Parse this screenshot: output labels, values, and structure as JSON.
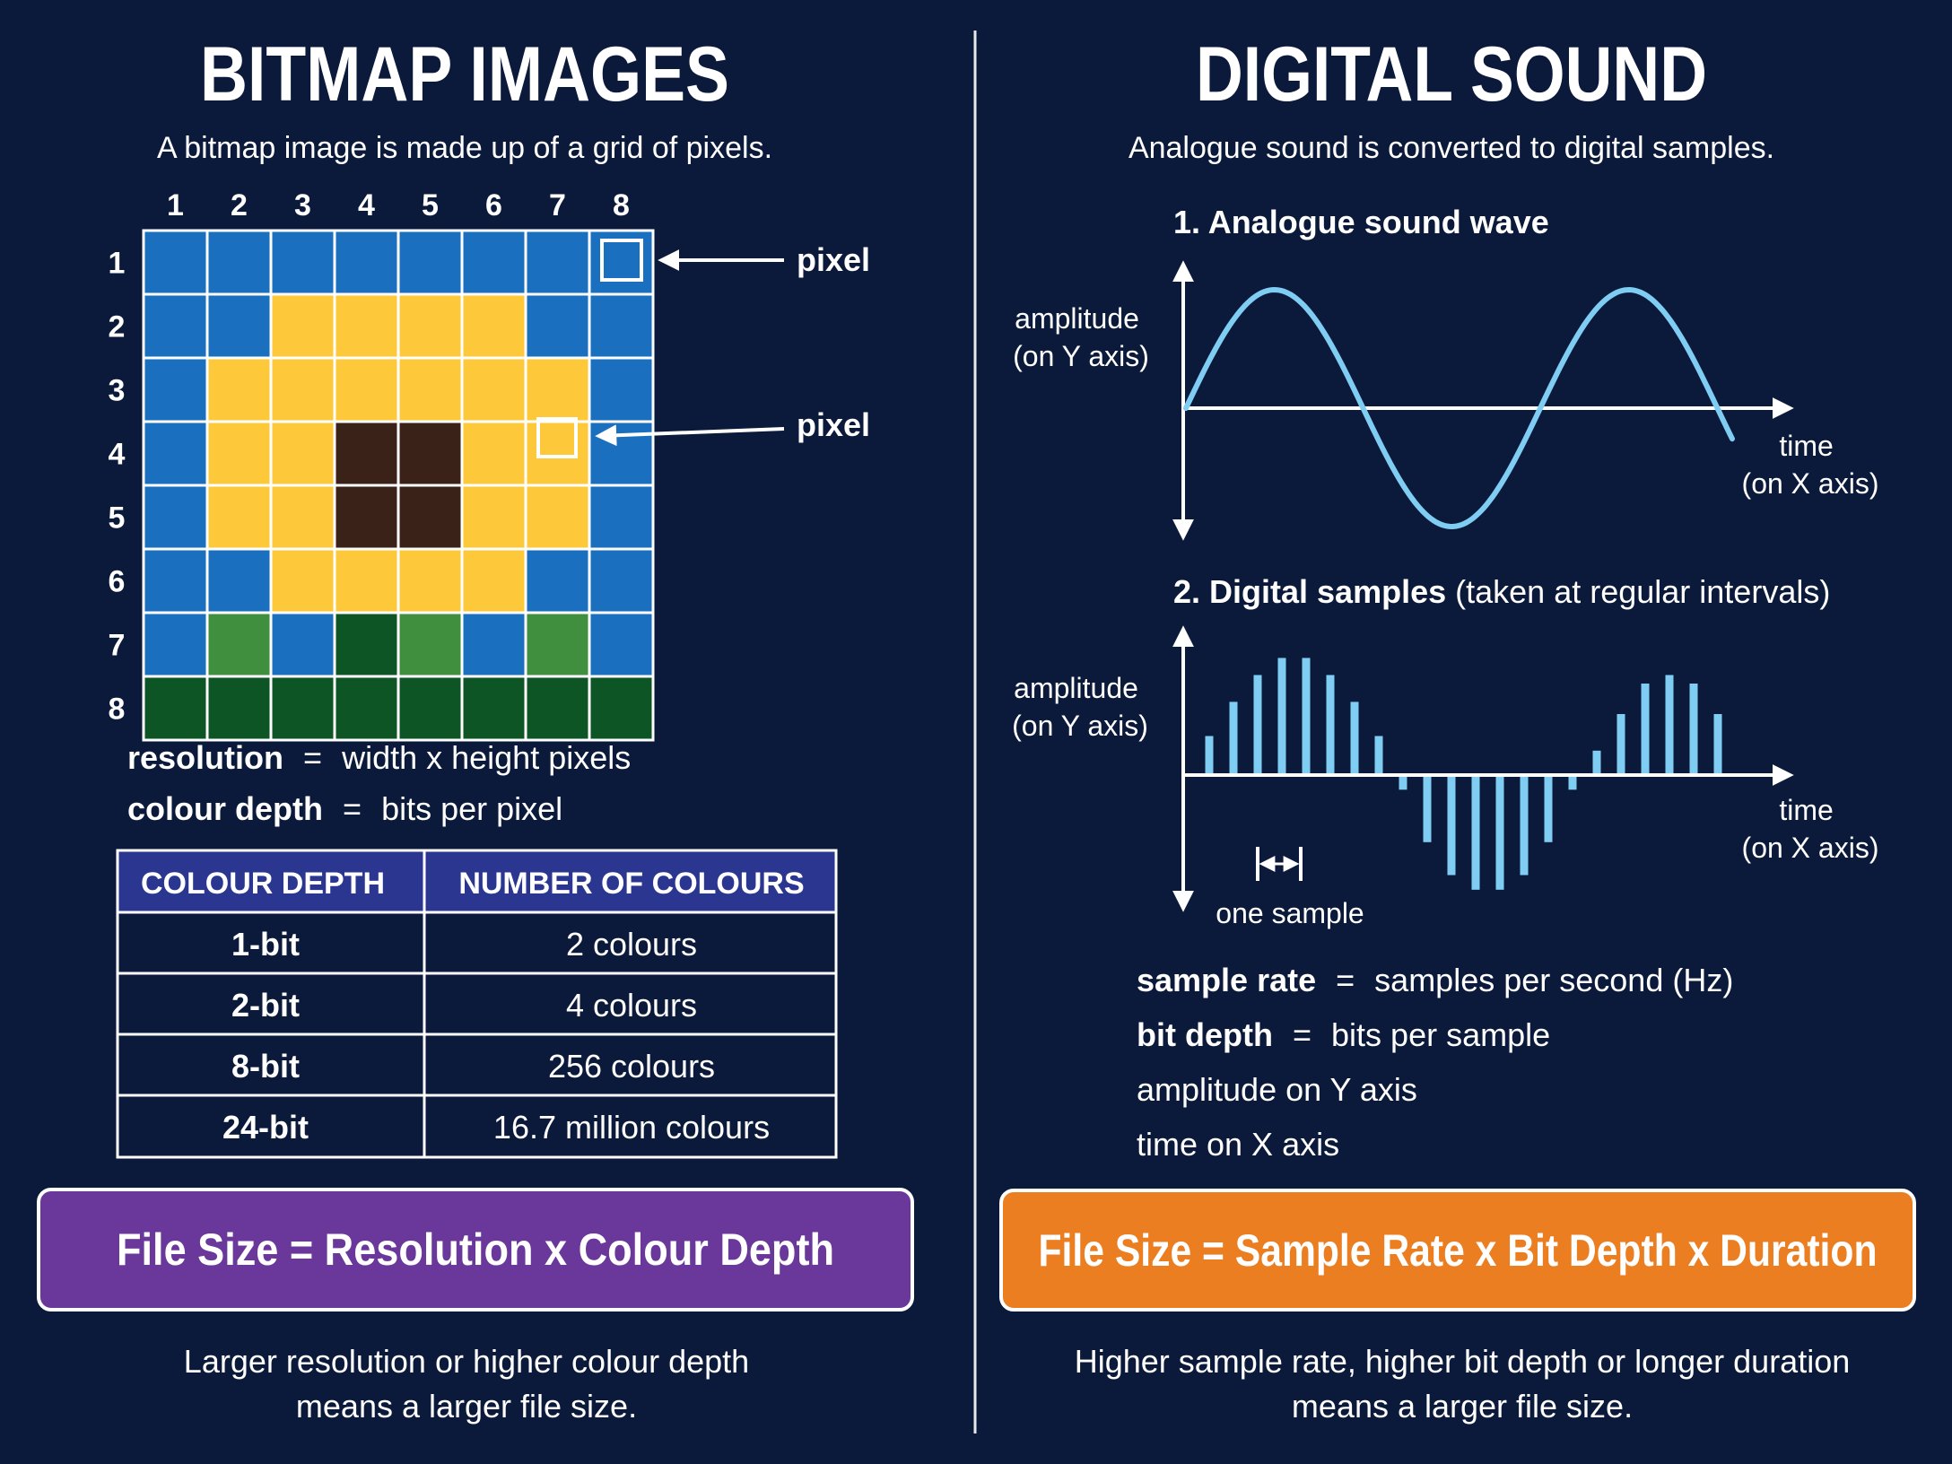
{
  "left": {
    "title": "BITMAP IMAGES",
    "subtitle": "A bitmap image is made up of a grid of pixels.",
    "grid": {
      "col_labels": [
        "1",
        "2",
        "3",
        "4",
        "5",
        "6",
        "7",
        "8"
      ],
      "row_labels": [
        "1",
        "2",
        "3",
        "4",
        "5",
        "6",
        "7",
        "8"
      ],
      "palette": {
        "B": "#1a6fbe",
        "Y": "#fdc93a",
        "K": "#3a2218",
        "G": "#3f8f3f",
        "D": "#0d5525"
      },
      "grid_line_color": "#ffffff",
      "rows": [
        [
          "B",
          "B",
          "B",
          "B",
          "B",
          "B",
          "B",
          "B"
        ],
        [
          "B",
          "B",
          "Y",
          "Y",
          "Y",
          "Y",
          "B",
          "B"
        ],
        [
          "B",
          "Y",
          "Y",
          "Y",
          "Y",
          "Y",
          "Y",
          "B"
        ],
        [
          "B",
          "Y",
          "Y",
          "K",
          "K",
          "Y",
          "Y",
          "B"
        ],
        [
          "B",
          "Y",
          "Y",
          "K",
          "K",
          "Y",
          "Y",
          "B"
        ],
        [
          "B",
          "B",
          "Y",
          "Y",
          "Y",
          "Y",
          "B",
          "B"
        ],
        [
          "B",
          "G",
          "B",
          "D",
          "G",
          "B",
          "G",
          "B"
        ],
        [
          "D",
          "D",
          "D",
          "D",
          "D",
          "D",
          "D",
          "D"
        ]
      ],
      "pixel_callouts": [
        {
          "label": "pixel",
          "row": 1,
          "col": 8
        },
        {
          "label": "pixel",
          "row": 4,
          "col": 7
        }
      ]
    },
    "definitions": [
      {
        "term": "resolution",
        "eq": "=",
        "def": "width x height pixels"
      },
      {
        "term": "colour depth",
        "eq": "=",
        "def": "bits per pixel"
      }
    ],
    "table": {
      "headers": [
        "COLOUR DEPTH",
        "NUMBER OF COLOURS"
      ],
      "rows": [
        [
          "1-bit",
          "2 colours"
        ],
        [
          "2-bit",
          "4 colours"
        ],
        [
          "8-bit",
          "256 colours"
        ],
        [
          "24-bit",
          "16.7 million colours"
        ]
      ],
      "header_color": "#2b3690"
    },
    "formula": "File Size = Resolution x Colour Depth",
    "formula_color": "#6a379a",
    "footer": [
      "Larger resolution or higher colour depth",
      "means a larger file size."
    ]
  },
  "right": {
    "title": "DIGITAL SOUND",
    "subtitle": "Analogue sound is converted to digital samples.",
    "wave": {
      "heading": "1. Analogue sound wave",
      "y_label": [
        "amplitude",
        "(on Y axis)"
      ],
      "x_label": [
        "time",
        "(on X axis)"
      ],
      "color": "#7fcdf3"
    },
    "samples": {
      "heading_bold": "2. Digital samples",
      "heading_rest": " (taken at regular intervals)",
      "y_label": [
        "amplitude",
        "(on Y axis)"
      ],
      "x_label": [
        "time",
        "(on X axis)"
      ],
      "one_sample_label": "one sample",
      "color": "#7fcdf3",
      "values": [
        0.32,
        0.6,
        0.82,
        0.96,
        0.96,
        0.82,
        0.6,
        0.32,
        -0.12,
        -0.55,
        -0.82,
        -0.94,
        -0.94,
        -0.82,
        -0.55,
        -0.12,
        0.2,
        0.5,
        0.75,
        0.82,
        0.75,
        0.5
      ]
    },
    "definitions": [
      {
        "term": "sample rate",
        "eq": "=",
        "def": "samples per second (Hz)"
      },
      {
        "term": "bit depth",
        "eq": "=",
        "def": "bits per sample"
      },
      {
        "term": "",
        "eq": "",
        "def": "amplitude on Y axis"
      },
      {
        "term": "",
        "eq": "",
        "def": "time on X axis"
      }
    ],
    "formula": "File Size = Sample Rate x Bit Depth x Duration",
    "formula_color": "#ec7e22",
    "footer": [
      "Higher sample rate, higher bit depth or longer duration",
      "means a larger file size."
    ]
  }
}
